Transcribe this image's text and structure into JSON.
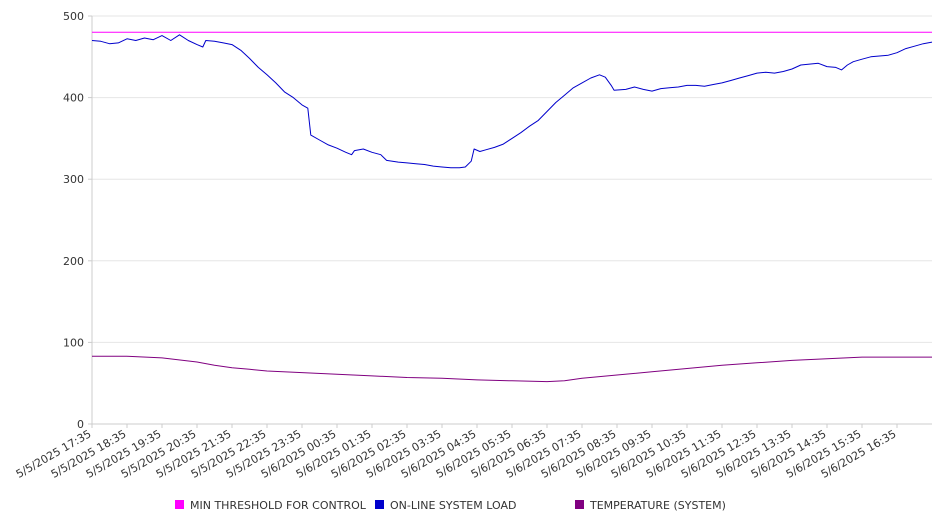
{
  "chart_data": {
    "type": "line",
    "title": "",
    "xlabel": "",
    "ylabel": "",
    "ylim": [
      0,
      500
    ],
    "yticks": [
      0,
      100,
      200,
      300,
      400,
      500
    ],
    "grid": "horizontal",
    "legend_position": "bottom",
    "x_tick_labels": [
      "5/5/2025 17:35",
      "5/5/2025 18:35",
      "5/5/2025 19:35",
      "5/5/2025 20:35",
      "5/5/2025 21:35",
      "5/5/2025 22:35",
      "5/5/2025 23:35",
      "5/6/2025 00:35",
      "5/6/2025 01:35",
      "5/6/2025 02:35",
      "5/6/2025 03:35",
      "5/6/2025 04:35",
      "5/6/2025 05:35",
      "5/6/2025 06:35",
      "5/6/2025 07:35",
      "5/6/2025 08:35",
      "5/6/2025 09:35",
      "5/6/2025 10:35",
      "5/6/2025 11:35",
      "5/6/2025 12:35",
      "5/6/2025 13:35",
      "5/6/2025 14:35",
      "5/6/2025 15:35",
      "5/6/2025 16:35"
    ],
    "x_start": "5/5/2025 17:35",
    "x_end": "5/6/2025 17:35",
    "series": [
      {
        "name": "MIN THRESHOLD FOR CONTROL",
        "color": "#ff00ff",
        "points": [
          [
            "5/5/2025 17:35",
            480
          ],
          [
            "5/6/2025 17:35",
            480
          ]
        ]
      },
      {
        "name": "ON-LINE SYSTEM LOAD",
        "color": "#0000cc",
        "points": [
          [
            "5/5/2025 17:35",
            470
          ],
          [
            "5/5/2025 17:50",
            469
          ],
          [
            "5/5/2025 18:05",
            466
          ],
          [
            "5/5/2025 18:20",
            467
          ],
          [
            "5/5/2025 18:35",
            472
          ],
          [
            "5/5/2025 18:50",
            470
          ],
          [
            "5/5/2025 19:05",
            473
          ],
          [
            "5/5/2025 19:20",
            471
          ],
          [
            "5/5/2025 19:35",
            476
          ],
          [
            "5/5/2025 19:50",
            470
          ],
          [
            "5/5/2025 20:05",
            477
          ],
          [
            "5/5/2025 20:20",
            470
          ],
          [
            "5/5/2025 20:35",
            465
          ],
          [
            "5/5/2025 20:45",
            462
          ],
          [
            "5/5/2025 20:50",
            470
          ],
          [
            "5/5/2025 21:05",
            469
          ],
          [
            "5/5/2025 21:20",
            467
          ],
          [
            "5/5/2025 21:35",
            465
          ],
          [
            "5/5/2025 21:50",
            458
          ],
          [
            "5/5/2025 22:05",
            448
          ],
          [
            "5/5/2025 22:20",
            437
          ],
          [
            "5/5/2025 22:35",
            428
          ],
          [
            "5/5/2025 22:50",
            418
          ],
          [
            "5/5/2025 23:05",
            407
          ],
          [
            "5/5/2025 23:20",
            400
          ],
          [
            "5/5/2025 23:35",
            391
          ],
          [
            "5/5/2025 23:45",
            387
          ],
          [
            "5/5/2025 23:50",
            354
          ],
          [
            "5/6/2025 00:05",
            348
          ],
          [
            "5/6/2025 00:20",
            342
          ],
          [
            "5/6/2025 00:35",
            338
          ],
          [
            "5/6/2025 00:50",
            333
          ],
          [
            "5/6/2025 01:00",
            330
          ],
          [
            "5/6/2025 01:05",
            335
          ],
          [
            "5/6/2025 01:20",
            337
          ],
          [
            "5/6/2025 01:35",
            333
          ],
          [
            "5/6/2025 01:50",
            330
          ],
          [
            "5/6/2025 02:00",
            323
          ],
          [
            "5/6/2025 02:20",
            321
          ],
          [
            "5/6/2025 02:35",
            320
          ],
          [
            "5/6/2025 02:50",
            319
          ],
          [
            "5/6/2025 03:05",
            318
          ],
          [
            "5/6/2025 03:20",
            316
          ],
          [
            "5/6/2025 03:35",
            315
          ],
          [
            "5/6/2025 03:50",
            314
          ],
          [
            "5/6/2025 04:05",
            314
          ],
          [
            "5/6/2025 04:15",
            315
          ],
          [
            "5/6/2025 04:25",
            322
          ],
          [
            "5/6/2025 04:30",
            337
          ],
          [
            "5/6/2025 04:40",
            334
          ],
          [
            "5/6/2025 04:50",
            336
          ],
          [
            "5/6/2025 05:05",
            339
          ],
          [
            "5/6/2025 05:20",
            343
          ],
          [
            "5/6/2025 05:35",
            350
          ],
          [
            "5/6/2025 05:50",
            357
          ],
          [
            "5/6/2025 06:05",
            365
          ],
          [
            "5/6/2025 06:20",
            372
          ],
          [
            "5/6/2025 06:35",
            383
          ],
          [
            "5/6/2025 06:50",
            394
          ],
          [
            "5/6/2025 07:05",
            403
          ],
          [
            "5/6/2025 07:20",
            412
          ],
          [
            "5/6/2025 07:35",
            418
          ],
          [
            "5/6/2025 07:50",
            424
          ],
          [
            "5/6/2025 08:05",
            428
          ],
          [
            "5/6/2025 08:15",
            425
          ],
          [
            "5/6/2025 08:25",
            415
          ],
          [
            "5/6/2025 08:30",
            409
          ],
          [
            "5/6/2025 08:50",
            410
          ],
          [
            "5/6/2025 09:05",
            413
          ],
          [
            "5/6/2025 09:20",
            410
          ],
          [
            "5/6/2025 09:35",
            408
          ],
          [
            "5/6/2025 09:50",
            411
          ],
          [
            "5/6/2025 10:05",
            412
          ],
          [
            "5/6/2025 10:20",
            413
          ],
          [
            "5/6/2025 10:35",
            415
          ],
          [
            "5/6/2025 10:50",
            415
          ],
          [
            "5/6/2025 11:05",
            414
          ],
          [
            "5/6/2025 11:20",
            416
          ],
          [
            "5/6/2025 11:35",
            418
          ],
          [
            "5/6/2025 11:50",
            421
          ],
          [
            "5/6/2025 12:05",
            424
          ],
          [
            "5/6/2025 12:20",
            427
          ],
          [
            "5/6/2025 12:35",
            430
          ],
          [
            "5/6/2025 12:50",
            431
          ],
          [
            "5/6/2025 13:05",
            430
          ],
          [
            "5/6/2025 13:20",
            432
          ],
          [
            "5/6/2025 13:35",
            435
          ],
          [
            "5/6/2025 13:50",
            440
          ],
          [
            "5/6/2025 14:05",
            441
          ],
          [
            "5/6/2025 14:20",
            442
          ],
          [
            "5/6/2025 14:35",
            438
          ],
          [
            "5/6/2025 14:50",
            437
          ],
          [
            "5/6/2025 15:00",
            434
          ],
          [
            "5/6/2025 15:10",
            440
          ],
          [
            "5/6/2025 15:20",
            444
          ],
          [
            "5/6/2025 15:35",
            447
          ],
          [
            "5/6/2025 15:50",
            450
          ],
          [
            "5/6/2025 16:05",
            451
          ],
          [
            "5/6/2025 16:20",
            452
          ],
          [
            "5/6/2025 16:35",
            455
          ],
          [
            "5/6/2025 16:50",
            460
          ],
          [
            "5/6/2025 17:05",
            463
          ],
          [
            "5/6/2025 17:20",
            466
          ],
          [
            "5/6/2025 17:35",
            468
          ]
        ]
      },
      {
        "name": "TEMPERATURE (SYSTEM)",
        "color": "#800080",
        "points": [
          [
            "5/5/2025 17:35",
            83
          ],
          [
            "5/5/2025 18:35",
            83
          ],
          [
            "5/5/2025 19:35",
            81
          ],
          [
            "5/5/2025 20:35",
            76
          ],
          [
            "5/5/2025 21:05",
            72
          ],
          [
            "5/5/2025 21:35",
            69
          ],
          [
            "5/5/2025 22:05",
            67
          ],
          [
            "5/5/2025 22:35",
            65
          ],
          [
            "5/5/2025 23:35",
            63
          ],
          [
            "5/6/2025 00:35",
            61
          ],
          [
            "5/6/2025 01:35",
            59
          ],
          [
            "5/6/2025 02:35",
            57
          ],
          [
            "5/6/2025 03:35",
            56
          ],
          [
            "5/6/2025 04:35",
            54
          ],
          [
            "5/6/2025 05:35",
            53
          ],
          [
            "5/6/2025 06:35",
            52
          ],
          [
            "5/6/2025 07:05",
            53
          ],
          [
            "5/6/2025 07:35",
            56
          ],
          [
            "5/6/2025 08:35",
            60
          ],
          [
            "5/6/2025 09:35",
            64
          ],
          [
            "5/6/2025 10:35",
            68
          ],
          [
            "5/6/2025 11:35",
            72
          ],
          [
            "5/6/2025 12:35",
            75
          ],
          [
            "5/6/2025 13:35",
            78
          ],
          [
            "5/6/2025 14:35",
            80
          ],
          [
            "5/6/2025 15:35",
            82
          ],
          [
            "5/6/2025 16:35",
            82
          ],
          [
            "5/6/2025 17:35",
            82
          ]
        ]
      }
    ]
  }
}
